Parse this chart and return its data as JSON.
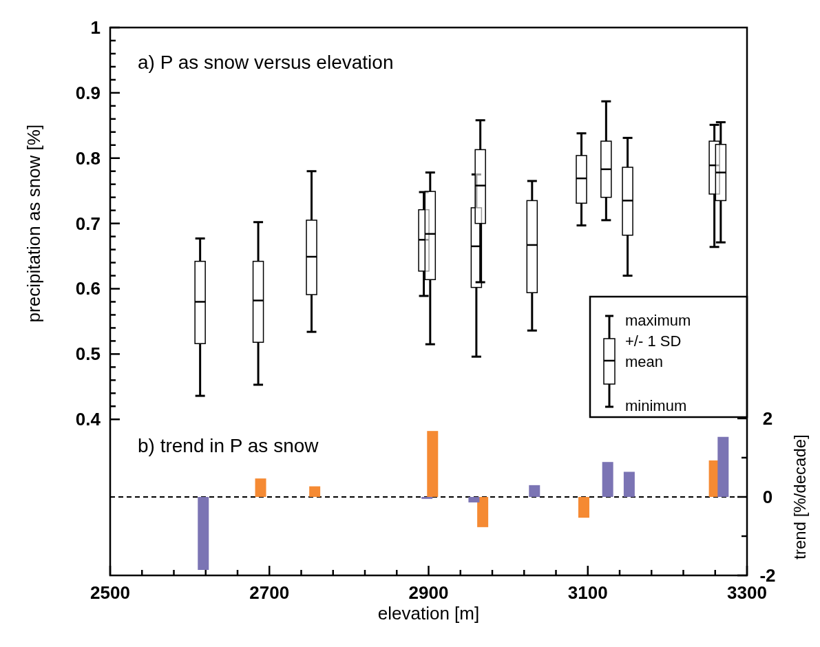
{
  "chart_data": {
    "type": "box",
    "xlabel": "elevation [m]",
    "ylabel": "precipitation as snow [%]",
    "y2label": "trend [%/decade]",
    "xlim": [
      2500,
      3300
    ],
    "xticks": [
      2500,
      {
        "value": 2540,
        "label": null
      },
      {
        "value": 2580,
        "label": null
      },
      {
        "value": 2620,
        "label": null
      },
      {
        "value": 2660,
        "label": null
      },
      2700,
      {
        "value": 2740,
        "label": null
      },
      {
        "value": 2780,
        "label": null
      },
      {
        "value": 2820,
        "label": null
      },
      {
        "value": 2860,
        "label": null
      },
      2900,
      {
        "value": 2940,
        "label": null
      },
      {
        "value": 2980,
        "label": null
      },
      {
        "value": 3020,
        "label": null
      },
      {
        "value": 3060,
        "label": null
      },
      3100,
      {
        "value": 3140,
        "label": null
      },
      {
        "value": 3180,
        "label": null
      },
      {
        "value": 3220,
        "label": null
      },
      {
        "value": 3260,
        "label": null
      },
      3300
    ],
    "ylim": [
      0.161,
      1
    ],
    "yticks": [
      {
        "value": 0.4,
        "label": "0.4"
      },
      {
        "value": 0.42,
        "label": null
      },
      {
        "value": 0.44,
        "label": null
      },
      {
        "value": 0.46,
        "label": null
      },
      {
        "value": 0.48,
        "label": null
      },
      {
        "value": 0.5,
        "label": "0.5"
      },
      {
        "value": 0.52,
        "label": null
      },
      {
        "value": 0.54,
        "label": null
      },
      {
        "value": 0.56,
        "label": null
      },
      {
        "value": 0.58,
        "label": null
      },
      {
        "value": 0.6,
        "label": "0.6"
      },
      {
        "value": 0.62,
        "label": null
      },
      {
        "value": 0.64,
        "label": null
      },
      {
        "value": 0.66,
        "label": null
      },
      {
        "value": 0.68,
        "label": null
      },
      {
        "value": 0.7,
        "label": "0.7"
      },
      {
        "value": 0.72,
        "label": null
      },
      {
        "value": 0.74,
        "label": null
      },
      {
        "value": 0.76,
        "label": null
      },
      {
        "value": 0.78,
        "label": null
      },
      {
        "value": 0.8,
        "label": "0.8"
      },
      {
        "value": 0.82,
        "label": null
      },
      {
        "value": 0.84,
        "label": null
      },
      {
        "value": 0.86,
        "label": null
      },
      {
        "value": 0.88,
        "label": null
      },
      {
        "value": 0.9,
        "label": "0.9"
      },
      {
        "value": 0.92,
        "label": null
      },
      {
        "value": 0.94,
        "label": null
      },
      {
        "value": 0.96,
        "label": null
      },
      {
        "value": 0.98,
        "label": null
      },
      1
    ],
    "y2lim": [
      -2,
      11.96
    ],
    "y2ticks": [
      -2,
      {
        "value": -1,
        "label": null
      },
      0,
      {
        "value": 1,
        "label": null
      },
      2
    ],
    "series": [
      {
        "color": "#000000",
        "x": [
          2613,
          2686,
          2753,
          2894,
          2902,
          2960,
          2965,
          3030,
          3092,
          3123,
          3150,
          3259,
          3267
        ],
        "boxes": [
          {
            "low": 0.436,
            "q1": 0.516,
            "median": 0.58,
            "q3": 0.642,
            "high": 0.677
          },
          {
            "low": 0.453,
            "q1": 0.518,
            "median": 0.582,
            "q3": 0.642,
            "high": 0.702
          },
          {
            "low": 0.534,
            "q1": 0.591,
            "median": 0.649,
            "q3": 0.705,
            "high": 0.78
          },
          {
            "low": 0.589,
            "q1": 0.627,
            "median": 0.675,
            "q3": 0.721,
            "high": 0.748
          },
          {
            "low": 0.515,
            "q1": 0.614,
            "median": 0.684,
            "q3": 0.749,
            "high": 0.778
          },
          {
            "low": 0.496,
            "q1": 0.602,
            "median": 0.665,
            "q3": 0.724,
            "high": 0.775
          },
          {
            "low": 0.61,
            "q1": 0.7,
            "median": 0.758,
            "q3": 0.813,
            "high": 0.858
          },
          {
            "low": 0.536,
            "q1": 0.594,
            "median": 0.667,
            "q3": 0.735,
            "high": 0.765
          },
          {
            "low": 0.697,
            "q1": 0.731,
            "median": 0.769,
            "q3": 0.804,
            "high": 0.838
          },
          {
            "low": 0.705,
            "q1": 0.74,
            "median": 0.783,
            "q3": 0.826,
            "high": 0.887
          },
          {
            "low": 0.62,
            "q1": 0.682,
            "median": 0.735,
            "q3": 0.786,
            "high": 0.831
          },
          {
            "low": 0.664,
            "q1": 0.745,
            "median": 0.789,
            "q3": 0.826,
            "high": 0.851
          },
          {
            "low": 0.671,
            "q1": 0.735,
            "median": 0.778,
            "q3": 0.821,
            "high": 0.855
          }
        ]
      },
      {
        "type": "bar",
        "axis": "y2",
        "color": "#f58a33",
        "x": [
          2689,
          2757,
          2905,
          2968,
          3095,
          3259
        ],
        "values": [
          0.47,
          0.27,
          1.68,
          -0.77,
          -0.53,
          0.93
        ]
      },
      {
        "type": "bar",
        "axis": "y2",
        "color": "#7b74b4",
        "x": [
          2617,
          2898,
          2957,
          3033,
          3125,
          3152,
          3270
        ],
        "values": [
          -1.86,
          -0.05,
          -0.14,
          0.3,
          0.89,
          0.64,
          1.53
        ]
      }
    ],
    "ref_lines": [
      {
        "axis": "y2",
        "value": 0,
        "line_style": "dashed",
        "color": "#000000"
      }
    ],
    "annotations": [
      "a) P as snow versus elevation",
      "b) trend in P as snow",
      "maximum",
      "+/- 1 SD",
      "mean",
      "minimum"
    ]
  }
}
